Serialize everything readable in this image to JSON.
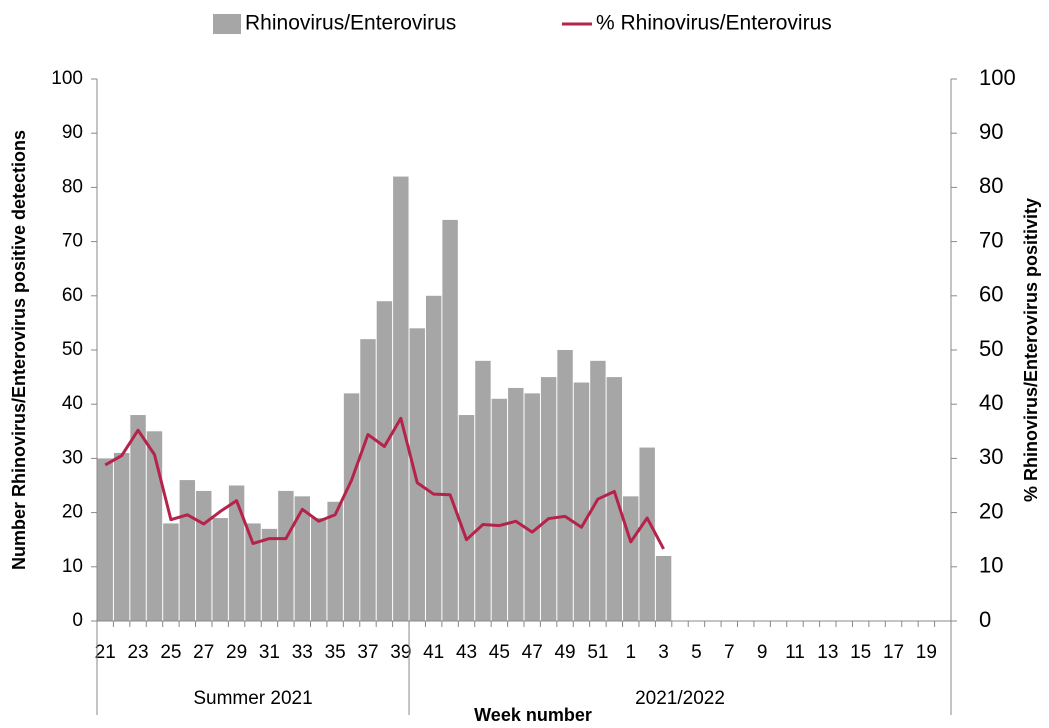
{
  "chart_data": {
    "type": "bar_line",
    "x_label": "Week number",
    "y_label": "Number Rhinovirus/Enterovirus positive detections",
    "y2_label": "% Rhinovirus/Enterovirus positivity",
    "groups": [
      "Summer 2021",
      "2021/2022"
    ],
    "categories": [
      "21",
      null,
      "23",
      null,
      "25",
      null,
      "27",
      null,
      "29",
      null,
      "31",
      null,
      "33",
      null,
      "35",
      null,
      "37",
      null,
      "39",
      null,
      "41",
      null,
      "43",
      null,
      "45",
      null,
      "47",
      null,
      "49",
      null,
      "51",
      null,
      "1",
      null,
      "3",
      null,
      "5",
      null,
      "7",
      null,
      "9",
      null,
      "11",
      null,
      "13",
      null,
      "15",
      null,
      "17",
      null,
      "19",
      null
    ],
    "series": [
      {
        "name": "Rhinovirus/Enterovirus",
        "color": "#a6a6a6",
        "kind": "bar",
        "values": [
          30,
          31,
          38,
          35,
          18,
          26,
          24,
          19,
          25,
          18,
          17,
          24,
          23,
          19,
          22,
          42,
          52,
          59,
          82,
          54,
          60,
          74,
          38,
          48,
          41,
          43,
          42,
          45,
          50,
          44,
          48,
          45,
          23,
          32,
          12,
          null,
          null,
          null,
          null,
          null,
          null,
          null,
          null,
          null,
          null,
          null,
          null,
          null,
          null,
          null,
          null,
          null
        ]
      },
      {
        "name": "% Rhinovirus/Enterovirus",
        "color": "#b5234b",
        "kind": "line",
        "axis": "y2",
        "values": [
          28.8,
          30.5,
          35.2,
          30.7,
          18.7,
          19.6,
          17.9,
          20.2,
          22.2,
          14.3,
          15.2,
          15.2,
          20.6,
          18.4,
          19.6,
          26,
          34.4,
          32.2,
          37.4,
          25.5,
          23.4,
          23.3,
          15,
          17.8,
          17.6,
          18.4,
          16.4,
          18.9,
          19.3,
          17.3,
          22.5,
          23.9,
          14.6,
          19,
          13.3,
          null,
          null,
          null,
          null,
          null,
          null,
          null,
          null,
          null,
          null,
          null,
          null,
          null,
          null,
          null,
          null,
          null
        ]
      }
    ],
    "ylim": [
      0,
      100
    ],
    "yticks": [
      0,
      10,
      20,
      30,
      40,
      50,
      60,
      70,
      80,
      90,
      100
    ],
    "y2lim": [
      0,
      100
    ],
    "y2ticks": [
      0,
      10,
      20,
      30,
      40,
      50,
      60,
      70,
      80,
      90,
      100
    ]
  }
}
